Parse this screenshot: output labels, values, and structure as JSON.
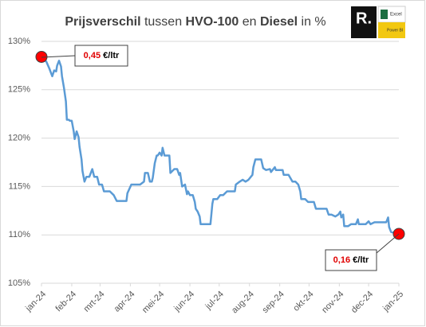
{
  "chart_data": {
    "type": "line",
    "title": [
      {
        "text": "Prijsverschil",
        "bold": true
      },
      {
        "text": " tussen ",
        "bold": false
      },
      {
        "text": "HVO-100",
        "bold": true
      },
      {
        "text": " en ",
        "bold": false
      },
      {
        "text": "Diesel",
        "bold": true
      },
      {
        "text": " in %",
        "bold": false
      }
    ],
    "logo": {
      "mark": "R.",
      "apps": [
        "Excel",
        "Power BI"
      ]
    },
    "xlim": [
      0,
      366
    ],
    "xticks": [
      {
        "value": 0,
        "label": "jan-24"
      },
      {
        "value": 31,
        "label": "feb-24"
      },
      {
        "value": 60,
        "label": "mrt-24"
      },
      {
        "value": 91,
        "label": "apr-24"
      },
      {
        "value": 121,
        "label": "mei-24"
      },
      {
        "value": 152,
        "label": "jun-24"
      },
      {
        "value": 182,
        "label": "jul-24"
      },
      {
        "value": 213,
        "label": "aug-24"
      },
      {
        "value": 244,
        "label": "sep-24"
      },
      {
        "value": 274,
        "label": "okt-24"
      },
      {
        "value": 305,
        "label": "nov-24"
      },
      {
        "value": 335,
        "label": "dec-24"
      },
      {
        "value": 366,
        "label": "jan-25"
      }
    ],
    "ylim": [
      105,
      130
    ],
    "yticks": [
      {
        "value": 105,
        "label": "105%"
      },
      {
        "value": 110,
        "label": "110%"
      },
      {
        "value": 115,
        "label": "115%"
      },
      {
        "value": 120,
        "label": "120%"
      },
      {
        "value": 125,
        "label": "125%"
      },
      {
        "value": 130,
        "label": "130%"
      }
    ],
    "grid": true,
    "color": "#5b9bd5",
    "marker_color": "#ff0000",
    "x": [
      0,
      5,
      8,
      11,
      13,
      15,
      16,
      18,
      20,
      21,
      23,
      25,
      26,
      28,
      29,
      31,
      33,
      34,
      36,
      38,
      39,
      41,
      42,
      44,
      46,
      49,
      52,
      54,
      57,
      59,
      62,
      64,
      70,
      74,
      77,
      80,
      83,
      87,
      88,
      92,
      96,
      101,
      105,
      106,
      109,
      111,
      113,
      114,
      116,
      118,
      119,
      121,
      123,
      124,
      126,
      127,
      131,
      132,
      136,
      139,
      141,
      142,
      144,
      147,
      149,
      150,
      152,
      155,
      157,
      158,
      160,
      162,
      163,
      167,
      170,
      173,
      175,
      176,
      180,
      183,
      186,
      190,
      193,
      194,
      198,
      199,
      203,
      206,
      209,
      212,
      216,
      217,
      219,
      222,
      225,
      227,
      230,
      234,
      235,
      239,
      240,
      243,
      247,
      248,
      253,
      257,
      260,
      263,
      265,
      266,
      270,
      273,
      276,
      279,
      281,
      284,
      288,
      292,
      294,
      297,
      301,
      304,
      306,
      307,
      309,
      310,
      314,
      317,
      322,
      324,
      325,
      332,
      335,
      337,
      341,
      346,
      353,
      355,
      356,
      358,
      366
    ],
    "values": [
      128.4,
      127.9,
      127.2,
      126.4,
      127.0,
      126.9,
      127.5,
      128.0,
      127.4,
      126.4,
      125.2,
      123.8,
      121.9,
      121.9,
      121.8,
      121.8,
      120.7,
      119.9,
      120.7,
      120.1,
      119.1,
      117.8,
      116.6,
      115.5,
      116.0,
      116.0,
      116.8,
      116.0,
      116.0,
      115.2,
      115.2,
      114.5,
      114.5,
      114.1,
      113.5,
      113.5,
      113.5,
      113.5,
      114.3,
      115.2,
      115.2,
      115.2,
      115.5,
      116.4,
      116.4,
      115.5,
      115.5,
      115.9,
      117.4,
      118.2,
      118.2,
      118.5,
      118.2,
      119.0,
      118.2,
      118.2,
      118.2,
      116.4,
      116.8,
      116.8,
      116.2,
      116.4,
      115.0,
      115.2,
      114.2,
      114.5,
      114.1,
      114.1,
      113.4,
      112.7,
      112.4,
      111.9,
      111.1,
      111.1,
      111.1,
      111.1,
      113.2,
      113.7,
      113.7,
      114.1,
      114.1,
      114.5,
      114.5,
      114.5,
      114.5,
      115.2,
      115.5,
      115.7,
      115.5,
      115.7,
      116.2,
      117.0,
      117.8,
      117.8,
      117.8,
      116.9,
      116.7,
      116.8,
      116.5,
      117.0,
      116.7,
      116.7,
      116.7,
      116.2,
      116.2,
      115.5,
      115.5,
      115.2,
      114.5,
      113.7,
      113.7,
      113.4,
      113.4,
      113.4,
      112.7,
      112.7,
      112.7,
      112.7,
      112.1,
      112.1,
      111.9,
      112.1,
      112.4,
      111.8,
      112.1,
      110.9,
      110.9,
      111.1,
      111.1,
      111.6,
      111.1,
      111.1,
      111.4,
      111.1,
      111.3,
      111.3,
      111.3,
      111.8,
      110.8,
      110.3,
      110.1
    ],
    "annotations": [
      {
        "value_text": "0,45",
        "unit": "€/ltr"
      },
      {
        "value_text": "0,16",
        "unit": "€/ltr"
      }
    ]
  }
}
